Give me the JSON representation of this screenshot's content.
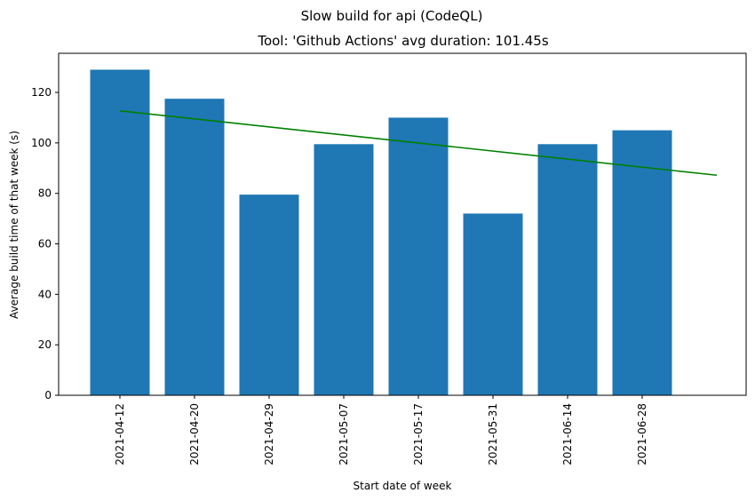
{
  "chart_data": {
    "type": "bar",
    "suptitle": "Slow build for api (CodeQL)",
    "title": "Tool: 'Github Actions' avg duration: 101.45s",
    "xlabel": "Start date of week",
    "ylabel": "Average build time of that week (s)",
    "categories": [
      "2021-04-12",
      "2021-04-20",
      "2021-04-29",
      "2021-05-07",
      "2021-05-17",
      "2021-05-31",
      "2021-06-14",
      "2021-06-28"
    ],
    "values": [
      129,
      117.5,
      79.5,
      99.5,
      110,
      72,
      99.5,
      105
    ],
    "trend": {
      "start_y": 112.7,
      "end_y": 87.2,
      "start_index": 0,
      "end_index": 8
    },
    "ylim": [
      0,
      135.5
    ],
    "yticks": [
      0,
      20,
      40,
      60,
      80,
      100,
      120
    ],
    "colors": {
      "bar": "#1f77b4",
      "trend": "#008000",
      "axis": "#000000"
    }
  }
}
